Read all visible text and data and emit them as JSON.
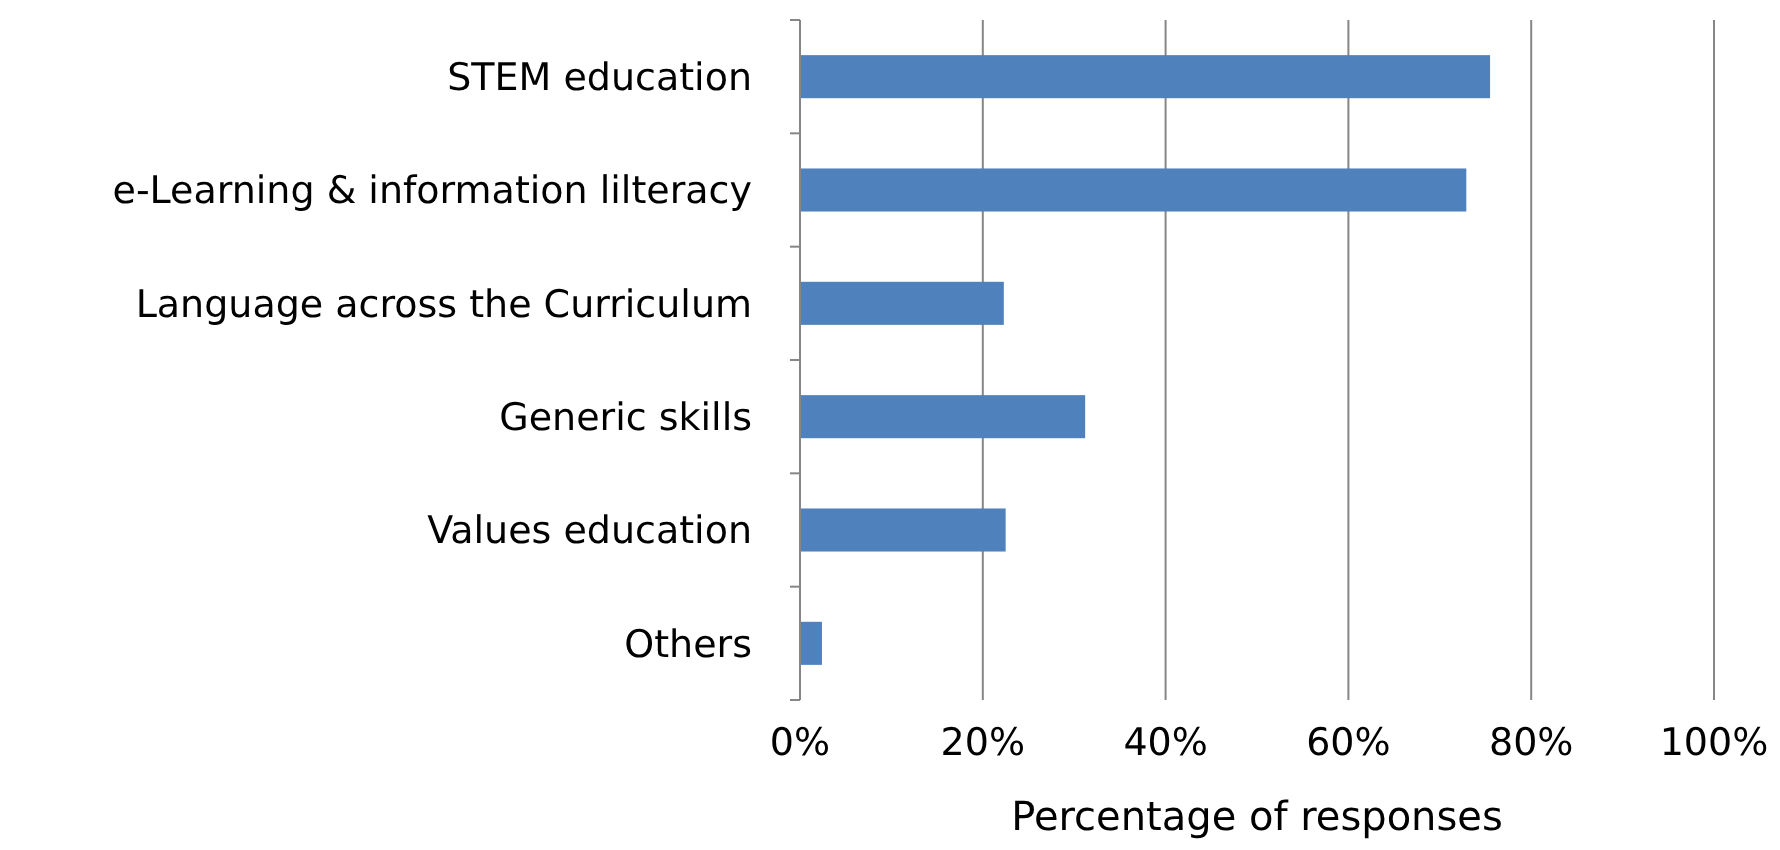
{
  "chart_data": {
    "type": "bar",
    "orientation": "horizontal",
    "xlabel": "Percentage of responses",
    "categories": [
      "STEM education",
      "e-Learning & information lilteracy",
      "Language across the Curriculum",
      "Generic skills",
      "Values education",
      "Others"
    ],
    "values": [
      75.5,
      72.9,
      22.3,
      31.2,
      22.5,
      2.4
    ],
    "color": "#4f81bd",
    "xlim": [
      0,
      100
    ],
    "xticks": [
      {
        "value": 0,
        "label": "0%"
      },
      {
        "value": 20,
        "label": "20%"
      },
      {
        "value": 40,
        "label": "40%"
      },
      {
        "value": 60,
        "label": "60%"
      },
      {
        "value": 80,
        "label": "80%"
      },
      {
        "value": 100,
        "label": "100%"
      }
    ],
    "grid": "x"
  }
}
